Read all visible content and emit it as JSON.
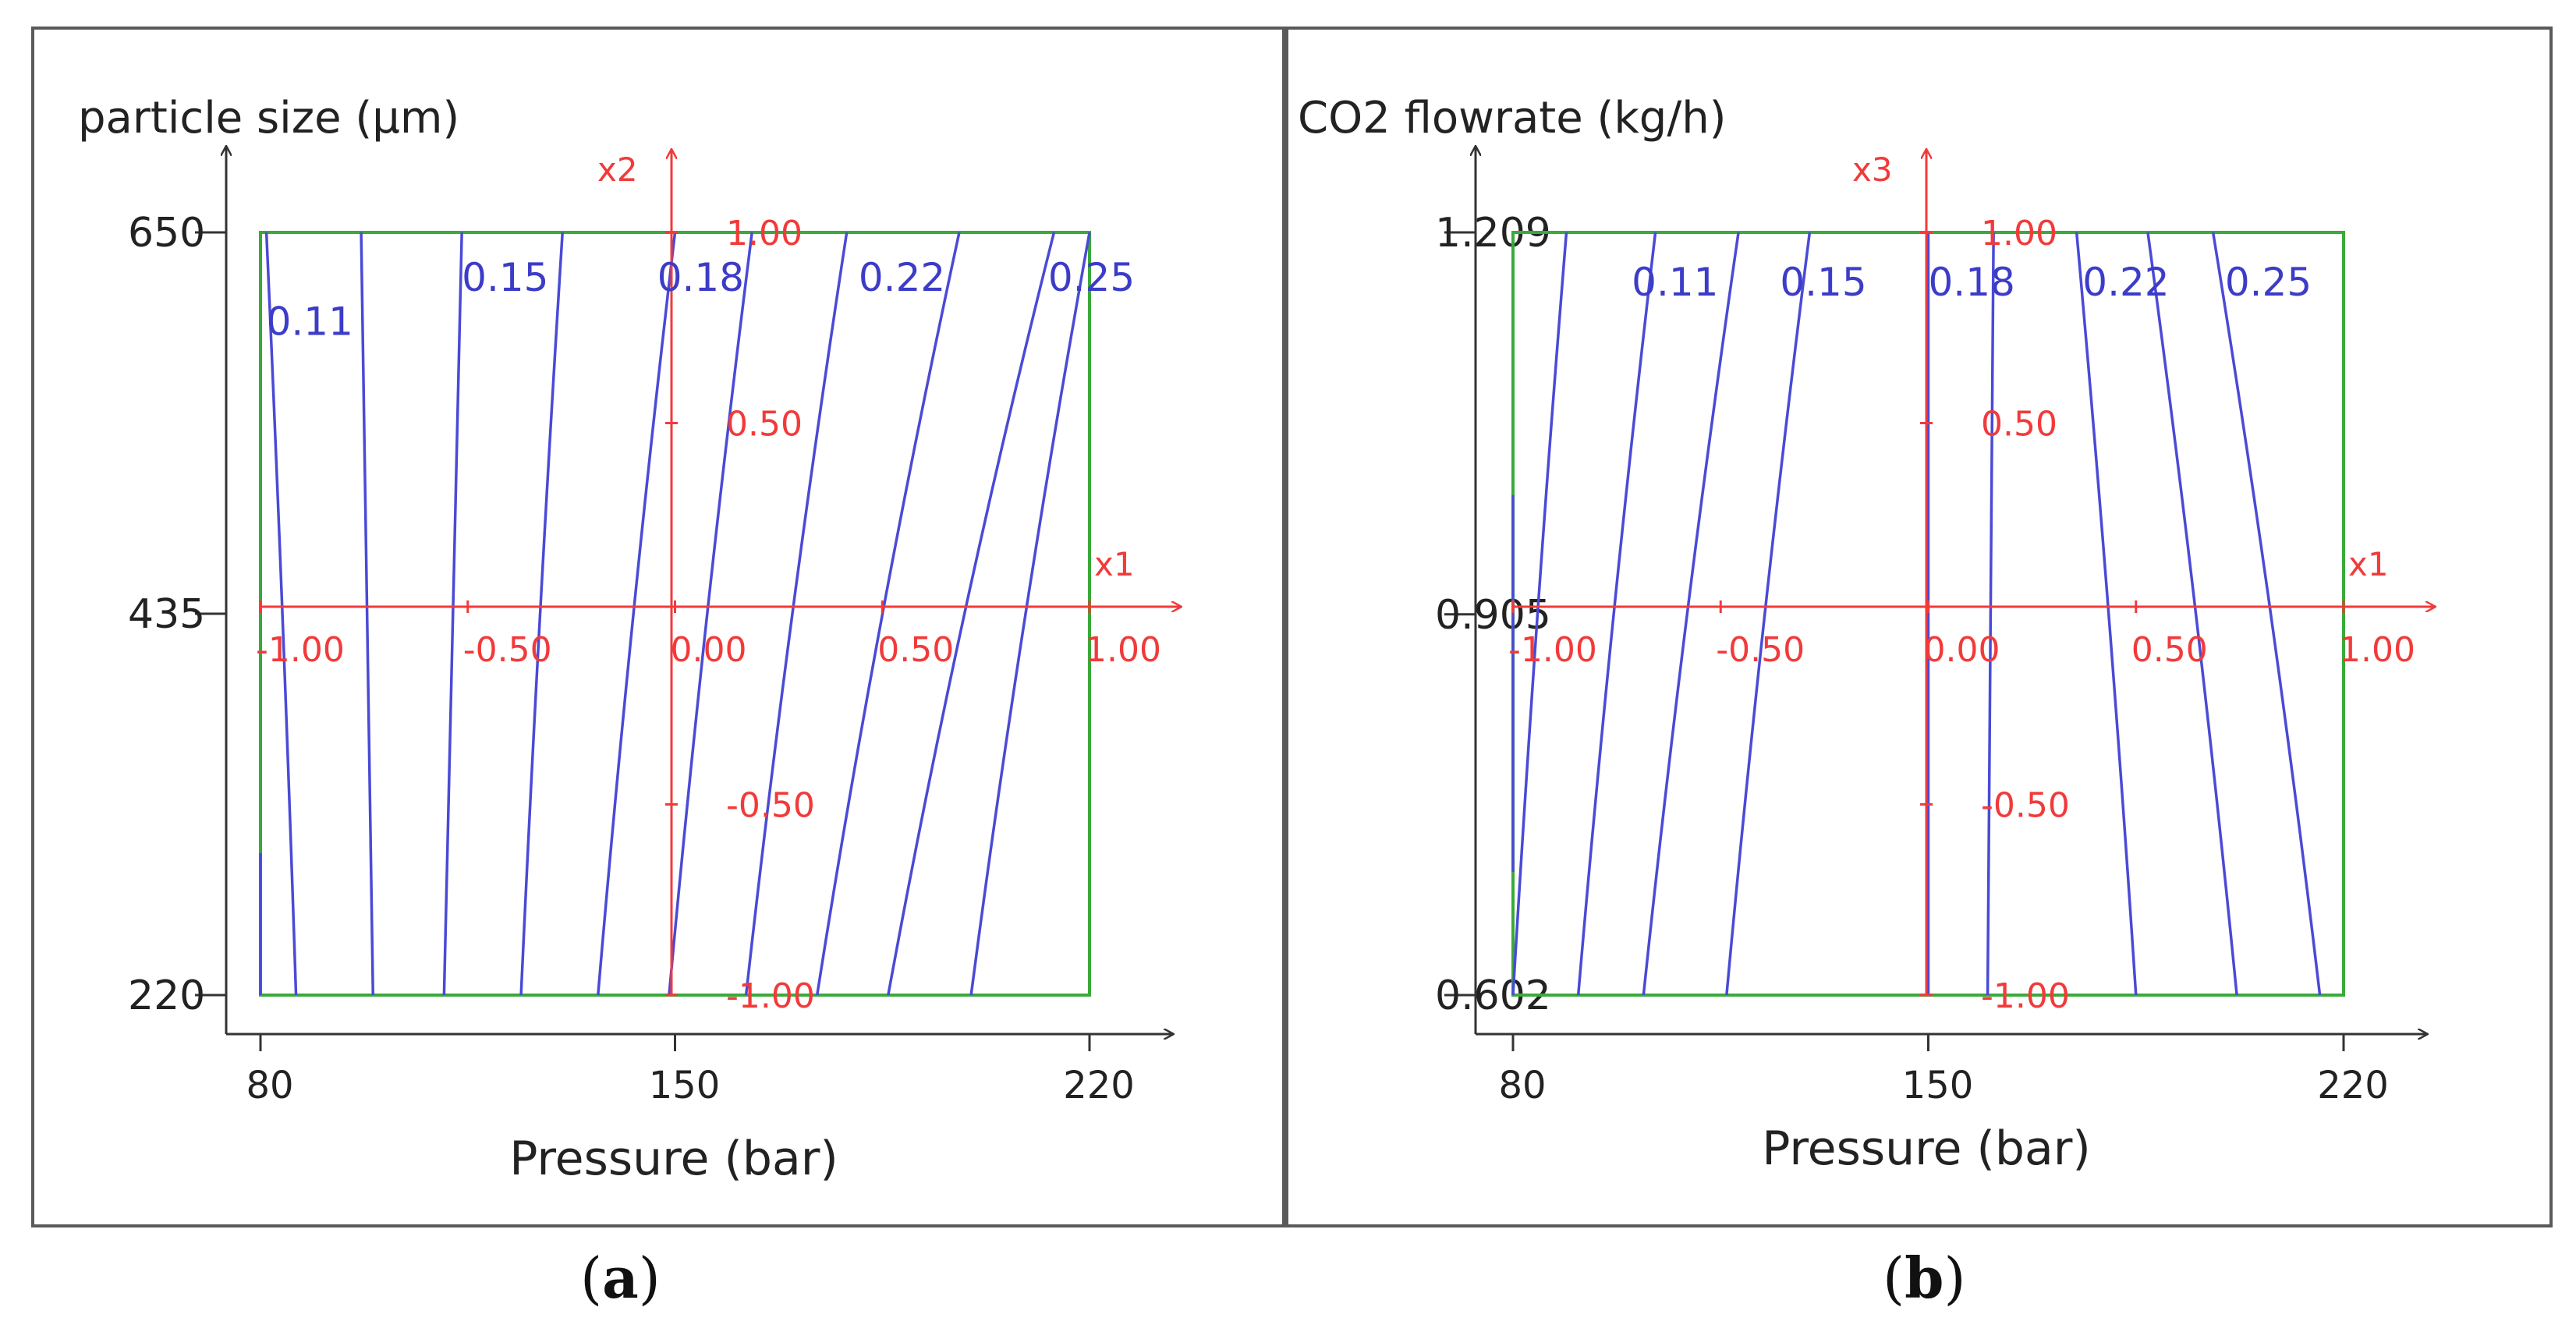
{
  "figure": {
    "panels": [
      {
        "label_open": "(",
        "label_letter": "a",
        "label_close": ")"
      },
      {
        "label_open": "(",
        "label_letter": "b",
        "label_close": ")"
      }
    ]
  },
  "colors": {
    "contour": "#4a4ad6",
    "contour_label": "#3c3cc8",
    "coded_axis": "#f23a3a",
    "design_region": "#3aaa3a",
    "axis": "#333333",
    "panel_border": "#5a5a5a"
  },
  "chart_data": [
    {
      "type": "contour",
      "title": "",
      "xlabel": "Pressure (bar)",
      "ylabel": "particle size (μm)",
      "xlim": [
        80,
        220
      ],
      "ylim": [
        220,
        650
      ],
      "xticks": [
        80,
        150,
        220
      ],
      "yticks": [
        220,
        435,
        650
      ],
      "xtick_labels": [
        "80",
        "150",
        "220"
      ],
      "ytick_labels": [
        "220",
        "435",
        "650"
      ],
      "coded_axes": {
        "x_name": "x1",
        "y_name": "x2",
        "x_ticks": [
          -1.0,
          -0.5,
          0.0,
          0.5,
          1.0
        ],
        "x_tick_labels": [
          "-1.00",
          "-0.50",
          "0.00",
          "0.50",
          "1.00"
        ],
        "y_ticks": [
          1.0,
          0.5,
          -0.5,
          -1.0
        ],
        "y_tick_labels": [
          "1.00",
          "0.50",
          "-0.50",
          "-1.00"
        ]
      },
      "contour_lines": [
        {
          "x_top": 80,
          "x_bottom": 80,
          "y_top": 300,
          "y_bottom": 220
        },
        {
          "x_top": 81,
          "x_bottom": 86
        },
        {
          "x_top": 97,
          "x_bottom": 99
        },
        {
          "x_top": 114,
          "x_bottom": 111
        },
        {
          "x_top": 131,
          "x_bottom": 124
        },
        {
          "x_top": 150,
          "x_bottom": 137
        },
        {
          "x_top": 163,
          "x_bottom": 149
        },
        {
          "x_top": 179,
          "x_bottom": 162
        },
        {
          "x_top": 198,
          "x_bottom": 174
        },
        {
          "x_top": 214,
          "x_bottom": 186
        },
        {
          "x_top": 220,
          "x_bottom": 200
        }
      ],
      "contour_labels": [
        {
          "text": "0.11",
          "x": 81,
          "y": 600
        },
        {
          "text": "0.15",
          "x": 114,
          "y": 625
        },
        {
          "text": "0.18",
          "x": 147,
          "y": 625
        },
        {
          "text": "0.22",
          "x": 181,
          "y": 625
        },
        {
          "text": "0.25",
          "x": 213,
          "y": 625
        }
      ]
    },
    {
      "type": "contour",
      "title": "",
      "xlabel": "Pressure (bar)",
      "ylabel": "CO2 flowrate (kg/h)",
      "xlim": [
        80,
        220
      ],
      "ylim": [
        0.602,
        1.209
      ],
      "xticks": [
        80,
        150,
        220
      ],
      "yticks": [
        0.602,
        0.905,
        1.209
      ],
      "xtick_labels": [
        "80",
        "150",
        "220"
      ],
      "ytick_labels": [
        "0.602",
        "0.905",
        "1.209"
      ],
      "coded_axes": {
        "x_name": "x1",
        "y_name": "x3",
        "x_ticks": [
          -1.0,
          -0.5,
          0.0,
          0.5,
          1.0
        ],
        "x_tick_labels": [
          "-1.00",
          "-0.50",
          "0.00",
          "0.50",
          "1.00"
        ],
        "y_ticks": [
          1.0,
          0.5,
          -0.5,
          -1.0
        ],
        "y_tick_labels": [
          "1.00",
          "0.50",
          "-0.50",
          "-1.00"
        ]
      },
      "contour_lines": [
        {
          "x_top": 80,
          "x_bottom": 80,
          "y_top": 1.0,
          "y_bottom": 0.7
        },
        {
          "x_top": 89,
          "x_bottom": 80
        },
        {
          "x_top": 104,
          "x_bottom": 91
        },
        {
          "x_top": 118,
          "x_bottom": 102
        },
        {
          "x_top": 130,
          "x_bottom": 116
        },
        {
          "x_top": 150,
          "x_bottom": 150
        },
        {
          "x_top": 161,
          "x_bottom": 160
        },
        {
          "x_top": 175,
          "x_bottom": 185
        },
        {
          "x_top": 187,
          "x_bottom": 202
        },
        {
          "x_top": 198,
          "x_bottom": 216
        }
      ],
      "contour_labels": [
        {
          "text": "0.11",
          "x": 100,
          "y": 1.17
        },
        {
          "text": "0.15",
          "x": 125,
          "y": 1.17
        },
        {
          "text": "0.18",
          "x": 150,
          "y": 1.17
        },
        {
          "text": "0.22",
          "x": 176,
          "y": 1.17
        },
        {
          "text": "0.25",
          "x": 200,
          "y": 1.17
        }
      ]
    }
  ]
}
